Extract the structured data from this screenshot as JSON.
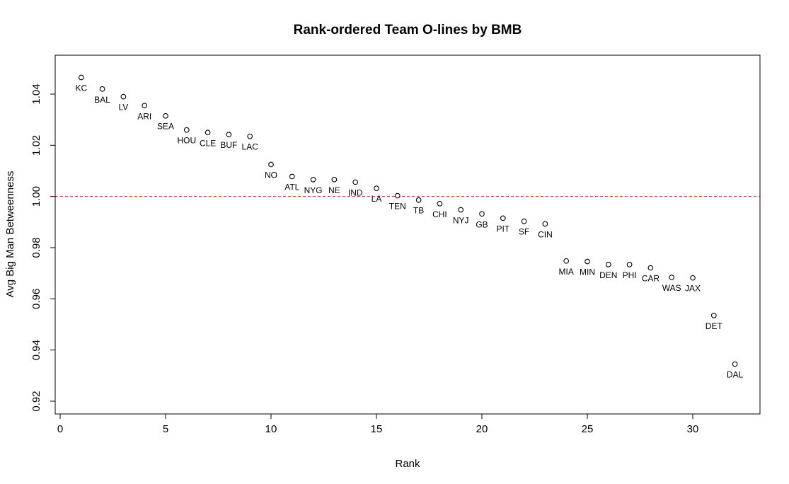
{
  "chart_data": {
    "type": "scatter",
    "title": "Rank-ordered Team O-lines by BMB",
    "xlabel": "Rank",
    "ylabel": "Avg Big Man Betweenness",
    "xlim": [
      0,
      33
    ],
    "ylim": [
      0.915,
      1.055
    ],
    "xticks": [
      0,
      5,
      10,
      15,
      20,
      25,
      30
    ],
    "yticks": [
      0.92,
      0.94,
      0.96,
      0.98,
      1.0,
      1.02,
      1.04
    ],
    "ytick_labels": [
      "0.92",
      "0.94",
      "0.96",
      "0.98",
      "1.00",
      "1.02",
      "1.04"
    ],
    "reference_line": {
      "y": 1.0,
      "color": "#d62728",
      "style": "dashed"
    },
    "marker": "open-circle",
    "grid": false,
    "points": [
      {
        "x": 1,
        "y": 1.0465,
        "label": "KC"
      },
      {
        "x": 2,
        "y": 1.042,
        "label": "BAL"
      },
      {
        "x": 3,
        "y": 1.039,
        "label": "LV"
      },
      {
        "x": 4,
        "y": 1.0355,
        "label": "ARI"
      },
      {
        "x": 5,
        "y": 1.0315,
        "label": "SEA"
      },
      {
        "x": 6,
        "y": 1.026,
        "label": "HOU"
      },
      {
        "x": 7,
        "y": 1.025,
        "label": "CLE"
      },
      {
        "x": 8,
        "y": 1.0242,
        "label": "BUF"
      },
      {
        "x": 9,
        "y": 1.0235,
        "label": "LAC"
      },
      {
        "x": 10,
        "y": 1.0125,
        "label": "NO"
      },
      {
        "x": 11,
        "y": 1.0078,
        "label": "ATL"
      },
      {
        "x": 12,
        "y": 1.0066,
        "label": "NYG"
      },
      {
        "x": 13,
        "y": 1.0066,
        "label": "NE"
      },
      {
        "x": 14,
        "y": 1.0056,
        "label": "IND"
      },
      {
        "x": 15,
        "y": 1.0032,
        "label": "LA"
      },
      {
        "x": 16,
        "y": 1.0003,
        "label": "TEN"
      },
      {
        "x": 17,
        "y": 0.9986,
        "label": "TB"
      },
      {
        "x": 18,
        "y": 0.9972,
        "label": "CHI"
      },
      {
        "x": 19,
        "y": 0.9948,
        "label": "NYJ"
      },
      {
        "x": 20,
        "y": 0.9932,
        "label": "GB"
      },
      {
        "x": 21,
        "y": 0.9915,
        "label": "PIT"
      },
      {
        "x": 22,
        "y": 0.9903,
        "label": "SF"
      },
      {
        "x": 23,
        "y": 0.9893,
        "label": "CIN"
      },
      {
        "x": 24,
        "y": 0.9748,
        "label": "MIA"
      },
      {
        "x": 25,
        "y": 0.9746,
        "label": "MIN"
      },
      {
        "x": 26,
        "y": 0.9734,
        "label": "DEN"
      },
      {
        "x": 27,
        "y": 0.9734,
        "label": "PHI"
      },
      {
        "x": 28,
        "y": 0.9721,
        "label": "CAR"
      },
      {
        "x": 29,
        "y": 0.9684,
        "label": "WAS"
      },
      {
        "x": 30,
        "y": 0.9682,
        "label": "JAX"
      },
      {
        "x": 31,
        "y": 0.9535,
        "label": "DET"
      },
      {
        "x": 32,
        "y": 0.9345,
        "label": "DAL"
      }
    ]
  }
}
